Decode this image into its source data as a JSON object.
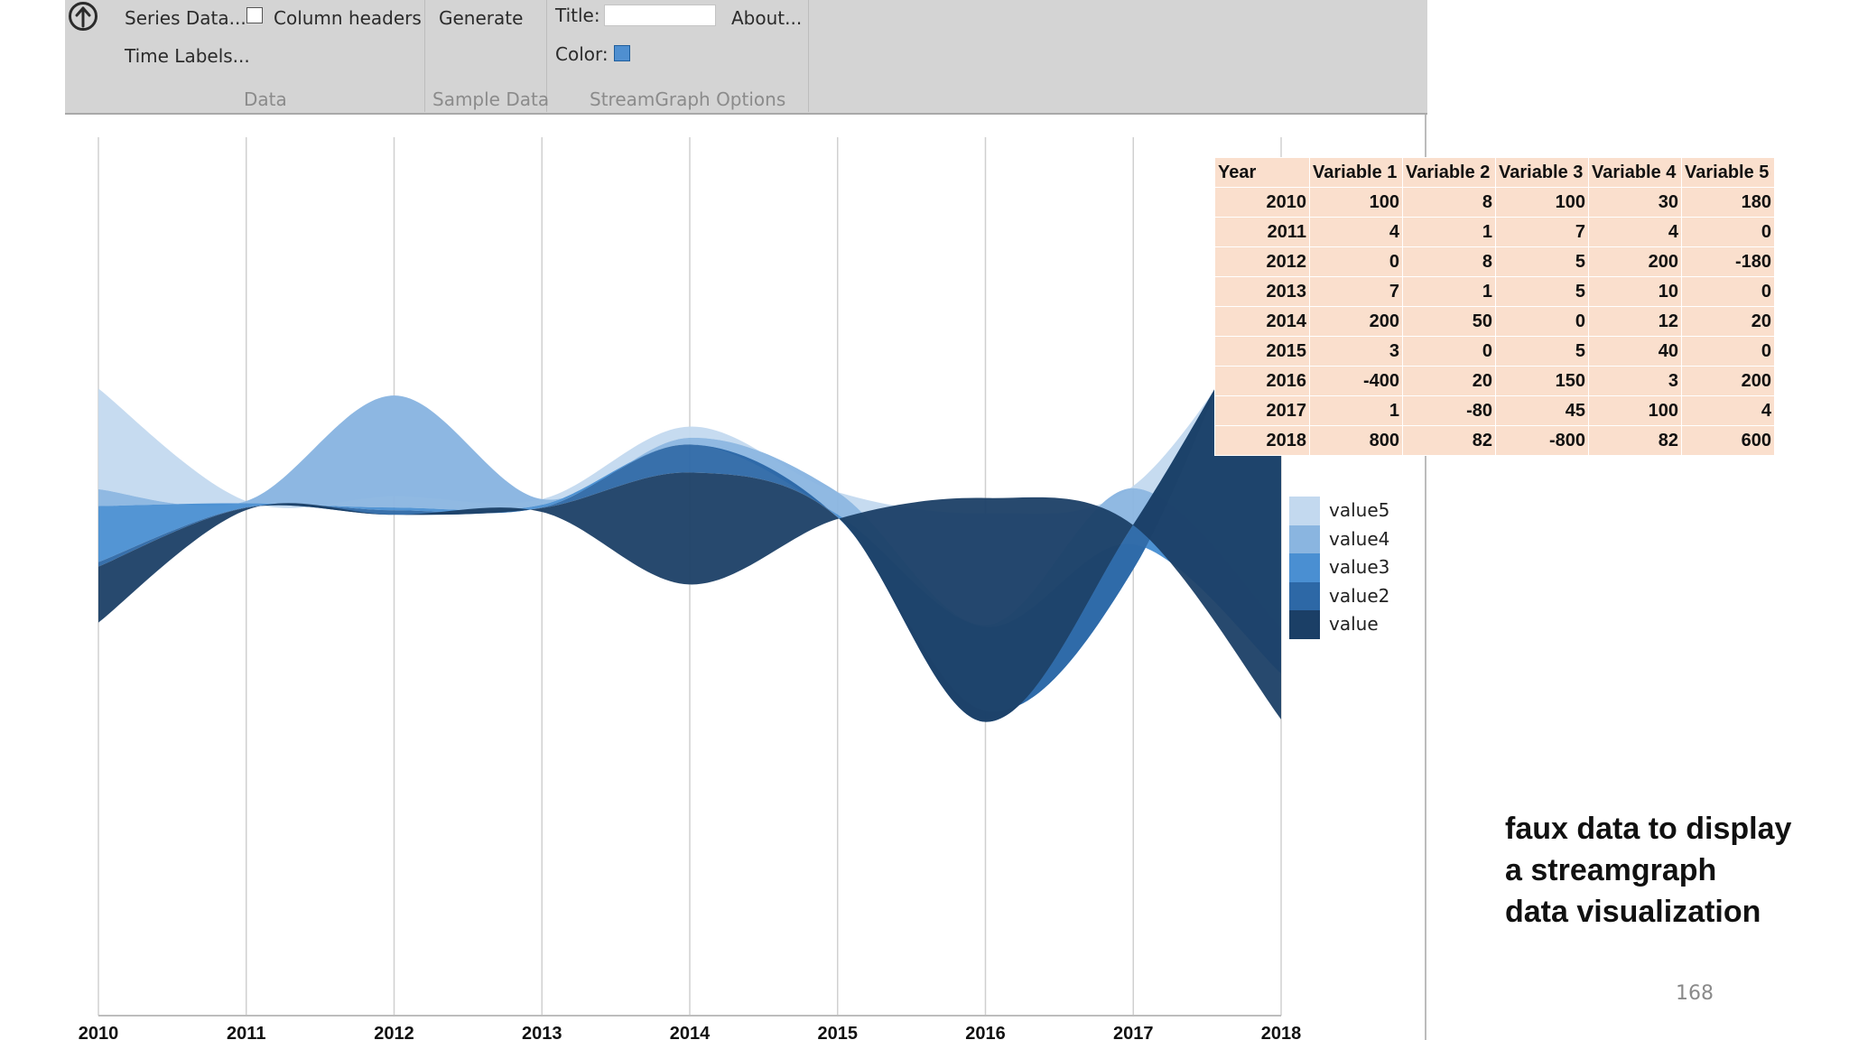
{
  "ribbon": {
    "series_data": "Series Data...",
    "column_headers": "Column headers",
    "time_labels": "Time Labels...",
    "generate": "Generate",
    "title_label": "Title:",
    "title_value": "",
    "about": "About...",
    "color_label": "Color:",
    "color_value": "#4f8fd0",
    "group_data": "Data",
    "group_sample": "Sample Data",
    "group_options": "StreamGraph Options"
  },
  "table": {
    "headers": [
      "Year",
      "Variable 1",
      "Variable 2",
      "Variable 3",
      "Variable 4",
      "Variable 5"
    ],
    "rows": [
      [
        "2010",
        "100",
        "8",
        "100",
        "30",
        "180"
      ],
      [
        "2011",
        "4",
        "1",
        "7",
        "4",
        "0"
      ],
      [
        "2012",
        "0",
        "8",
        "5",
        "200",
        "-180"
      ],
      [
        "2013",
        "7",
        "1",
        "5",
        "10",
        "0"
      ],
      [
        "2014",
        "200",
        "50",
        "0",
        "12",
        "20"
      ],
      [
        "2015",
        "3",
        "0",
        "5",
        "40",
        "0"
      ],
      [
        "2016",
        "-400",
        "20",
        "150",
        "3",
        "200"
      ],
      [
        "2017",
        "1",
        "-80",
        "45",
        "100",
        "4"
      ],
      [
        "2018",
        "800",
        "82",
        "-800",
        "82",
        "600"
      ]
    ]
  },
  "chart_data": {
    "type": "area",
    "subtype": "streamgraph",
    "x": [
      2010,
      2011,
      2012,
      2013,
      2014,
      2015,
      2016,
      2017,
      2018
    ],
    "xlim": [
      2010,
      2018
    ],
    "grid": "vertical",
    "legend_position": "right",
    "series": [
      {
        "name": "value",
        "color": "#1b3f66",
        "values": [
          100,
          4,
          0,
          7,
          200,
          3,
          -400,
          1,
          800
        ]
      },
      {
        "name": "value2",
        "color": "#2d68a6",
        "values": [
          8,
          1,
          8,
          1,
          50,
          0,
          20,
          -80,
          82
        ]
      },
      {
        "name": "value3",
        "color": "#4a8fd2",
        "values": [
          100,
          7,
          5,
          5,
          0,
          5,
          150,
          45,
          -800
        ]
      },
      {
        "name": "value4",
        "color": "#8ab5e0",
        "values": [
          30,
          4,
          200,
          10,
          12,
          40,
          3,
          100,
          82
        ]
      },
      {
        "name": "value5",
        "color": "#c3d9ef",
        "values": [
          180,
          0,
          -180,
          0,
          20,
          0,
          200,
          4,
          600
        ]
      }
    ],
    "legend_order": [
      "value5",
      "value4",
      "value3",
      "value2",
      "value"
    ]
  },
  "caption": [
    "faux data to display",
    "a streamgraph",
    "data visualization"
  ],
  "page_number": "168"
}
